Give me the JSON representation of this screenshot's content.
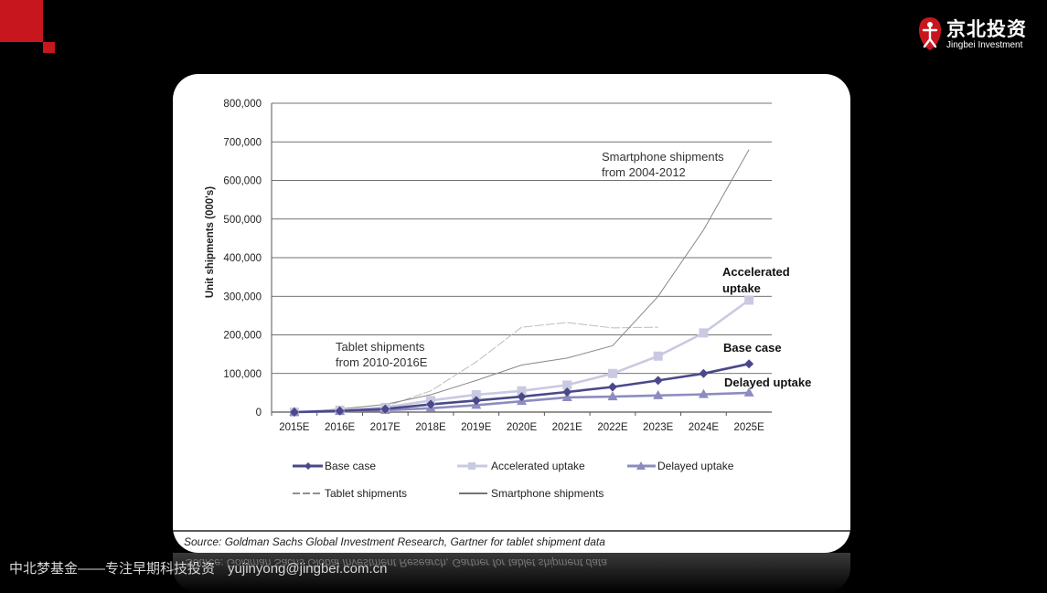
{
  "brand": {
    "name_cn": "京北投资",
    "name_en": "Jingbei Investment",
    "accent_color": "#c8161e"
  },
  "footer": {
    "tagline": "中北梦基金——专注早期科技投资",
    "email": "yujinyong@jingbei.com.cn"
  },
  "chart_data": {
    "type": "line",
    "title": "",
    "xlabel": "",
    "ylabel": "Unit shipments (000's)",
    "categories": [
      "2015E",
      "2016E",
      "2017E",
      "2018E",
      "2019E",
      "2020E",
      "2021E",
      "2022E",
      "2023E",
      "2024E",
      "2025E"
    ],
    "ylim": [
      0,
      800000
    ],
    "yticks": [
      "800,000",
      "700,000",
      "600,000",
      "500,000",
      "400,000",
      "300,000",
      "200,000",
      "100,000",
      "0"
    ],
    "grid": "horizontal",
    "series": [
      {
        "name": "Base case",
        "color": "#4b4889",
        "marker": "diamond",
        "values": [
          0,
          3000,
          8000,
          20000,
          30000,
          40000,
          52000,
          65000,
          82000,
          100000,
          125000
        ]
      },
      {
        "name": "Accelerated uptake",
        "color": "#c9c9e2",
        "marker": "square",
        "values": [
          0,
          5000,
          12000,
          30000,
          45000,
          55000,
          70000,
          100000,
          145000,
          205000,
          290000
        ]
      },
      {
        "name": "Delayed uptake",
        "color": "#8d8cbf",
        "marker": "triangle",
        "values": [
          0,
          2000,
          5000,
          10000,
          18000,
          28000,
          38000,
          40000,
          43000,
          46000,
          50000
        ]
      },
      {
        "name": "Tablet shipments",
        "color": "#bdbdbd",
        "marker": "none",
        "dash": true,
        "values": [
          0,
          5000,
          14000,
          55000,
          130000,
          220000,
          232000,
          218000,
          220000,
          null,
          null
        ]
      },
      {
        "name": "Smartphone shipments",
        "color": "#888888",
        "marker": "none",
        "values": [
          0,
          8000,
          20000,
          45000,
          82000,
          122000,
          140000,
          172000,
          300000,
          472000,
          680000
        ]
      }
    ],
    "annotations": [
      {
        "text": "Smartphone shipments",
        "style": "normal"
      },
      {
        "text": "from 2004-2012",
        "style": "normal"
      },
      {
        "text": "Tablet shipments",
        "style": "normal"
      },
      {
        "text": "from 2010-2016E",
        "style": "normal"
      },
      {
        "text": "Accelerated",
        "style": "bold"
      },
      {
        "text": "uptake",
        "style": "bold"
      },
      {
        "text": "Base case",
        "style": "bold"
      },
      {
        "text": "Delayed uptake",
        "style": "bold"
      }
    ],
    "source": "Source: Goldman Sachs Global Investment Research, Gartner for tablet shipment data"
  }
}
